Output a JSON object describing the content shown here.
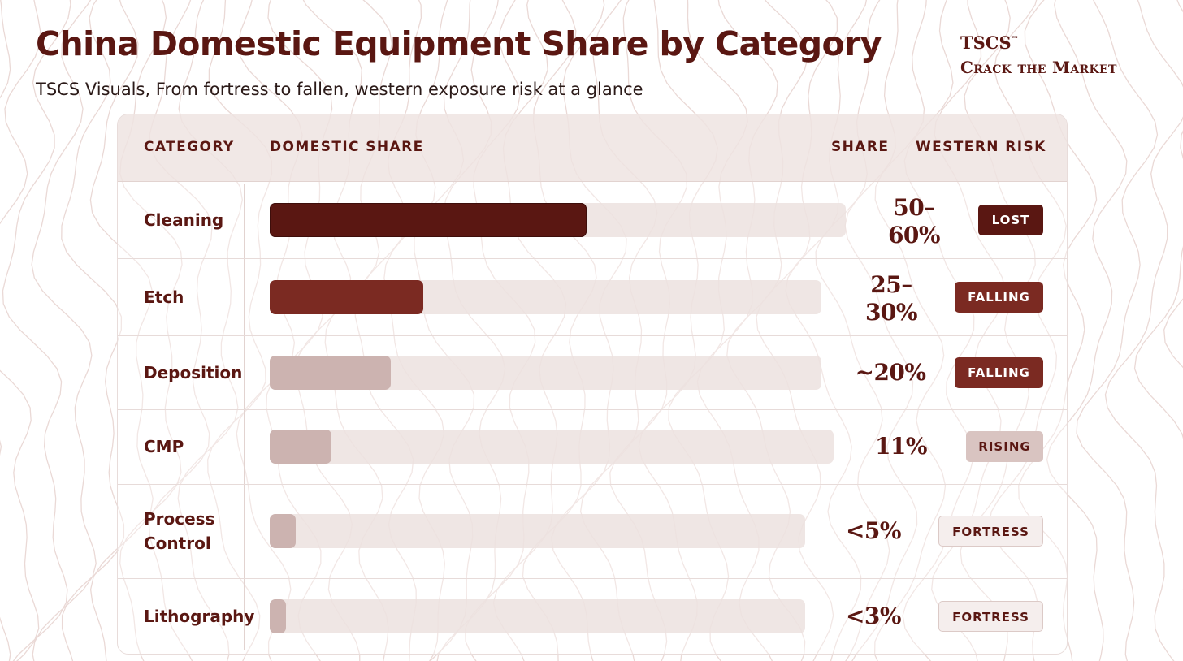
{
  "header": {
    "title": "China Domestic Equipment Share by Category",
    "subtitle": "TSCS Visuals, From fortress to fallen, western exposure risk at a glance"
  },
  "brand": {
    "name": "TSCS",
    "mark": "™",
    "tagline": "Crack the Market"
  },
  "table": {
    "columns": [
      "CATEGORY",
      "DOMESTIC SHARE",
      "SHARE",
      "WESTERN RISK"
    ]
  },
  "colors": {
    "lost": "#5a1712",
    "falling": "#7b2a22",
    "rising": "#d9c4c1",
    "fortress": "#f5eeed",
    "bar_track": "#ece0de",
    "bar_dark": "#5a1712",
    "bar_mid": "#7b2a22",
    "bar_light": "#ccb3b0"
  },
  "chart_data": {
    "type": "bar",
    "title": "China Domestic Equipment Share by Category",
    "subtitle": "TSCS Visuals, From fortress to fallen, western exposure risk at a glance",
    "ylabel": "DOMESTIC SHARE",
    "unit": "%",
    "ylim": [
      0,
      100
    ],
    "categories": [
      "Cleaning",
      "Etch",
      "Deposition",
      "CMP",
      "Process Control",
      "Lithography"
    ],
    "values": [
      55,
      27.5,
      20,
      11,
      5,
      3
    ],
    "share_labels": [
      "50–\n60%",
      "25–\n30%",
      "~20%",
      "11%",
      "<5%",
      "<3%"
    ],
    "western_risk": [
      "LOST",
      "FALLING",
      "FALLING",
      "RISING",
      "FORTRESS",
      "FORTRESS"
    ]
  }
}
